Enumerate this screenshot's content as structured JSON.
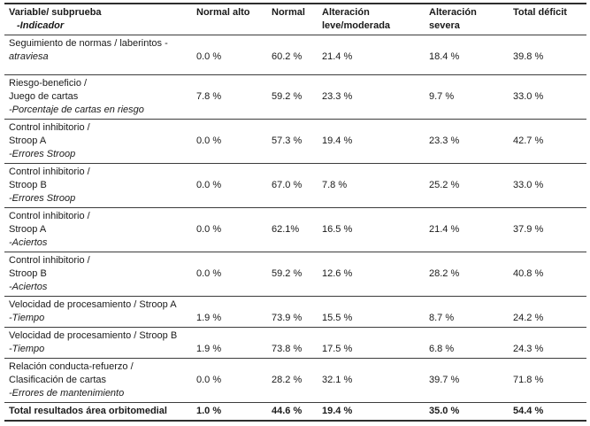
{
  "table": {
    "header": {
      "variable": "Variable/ subprueba",
      "indicador": "-Indicador",
      "normal_alto": "Normal alto",
      "normal": "Normal",
      "alteracion_leve": [
        "Alteración",
        "leve/moderada"
      ],
      "alteracion_severa": [
        "Alteración",
        "severa"
      ],
      "total_deficit": "Total déficit"
    },
    "rows": [
      {
        "label_lines": [
          "Seguimiento de normas / laberintos -",
          "atraviesa"
        ],
        "values": [
          "0.0 %",
          "60.2 %",
          "21.4 %",
          "18.4 %",
          "39.8 %"
        ]
      },
      {
        "label_lines": [
          "Riesgo-beneficio /",
          "Juego de cartas",
          "-Porcentaje de cartas en riesgo"
        ],
        "values": [
          "7.8 %",
          "59.2 %",
          "23.3 %",
          "9.7 %",
          "33.0 %"
        ]
      },
      {
        "label_lines": [
          "Control inhibitorio /",
          "Stroop A",
          "-Errores Stroop"
        ],
        "values": [
          "0.0 %",
          "57.3 %",
          "19.4 %",
          "23.3 %",
          "42.7 %"
        ]
      },
      {
        "label_lines": [
          "Control inhibitorio /",
          "Stroop B",
          "-Errores Stroop"
        ],
        "values": [
          "0.0 %",
          "67.0 %",
          "7.8 %",
          "25.2 %",
          "33.0 %"
        ]
      },
      {
        "label_lines": [
          "Control inhibitorio /",
          "Stroop A",
          "-Aciertos"
        ],
        "values": [
          "0.0 %",
          "62.1%",
          "16.5 %",
          "21.4 %",
          "37.9 %"
        ]
      },
      {
        "label_lines": [
          "Control inhibitorio /",
          "Stroop B",
          "-Aciertos"
        ],
        "values": [
          "0.0 %",
          "59.2 %",
          "12.6 %",
          "28.2 %",
          "40.8 %"
        ]
      },
      {
        "label_lines": [
          "Velocidad de procesamiento / Stroop A",
          "-Tiempo"
        ],
        "values": [
          "1.9 %",
          "73.9 %",
          "15.5 %",
          "8.7 %",
          "24.2 %"
        ]
      },
      {
        "label_lines": [
          "Velocidad de procesamiento / Stroop B",
          "-Tiempo"
        ],
        "values": [
          "1.9 %",
          "73.8 %",
          "17.5 %",
          "6.8 %",
          "24.3 %"
        ]
      },
      {
        "label_lines": [
          "Relación conducta-refuerzo /",
          "Clasificación de cartas",
          "-Errores de mantenimiento"
        ],
        "values": [
          "0.0 %",
          "28.2 %",
          "32.1 %",
          "39.7 %",
          "71.8 %"
        ]
      }
    ],
    "total_row": {
      "label": "Total resultados área orbitomedial",
      "values": [
        "1.0 %",
        "44.6 %",
        "19.4 %",
        "35.0 %",
        "54.4 %"
      ]
    }
  }
}
